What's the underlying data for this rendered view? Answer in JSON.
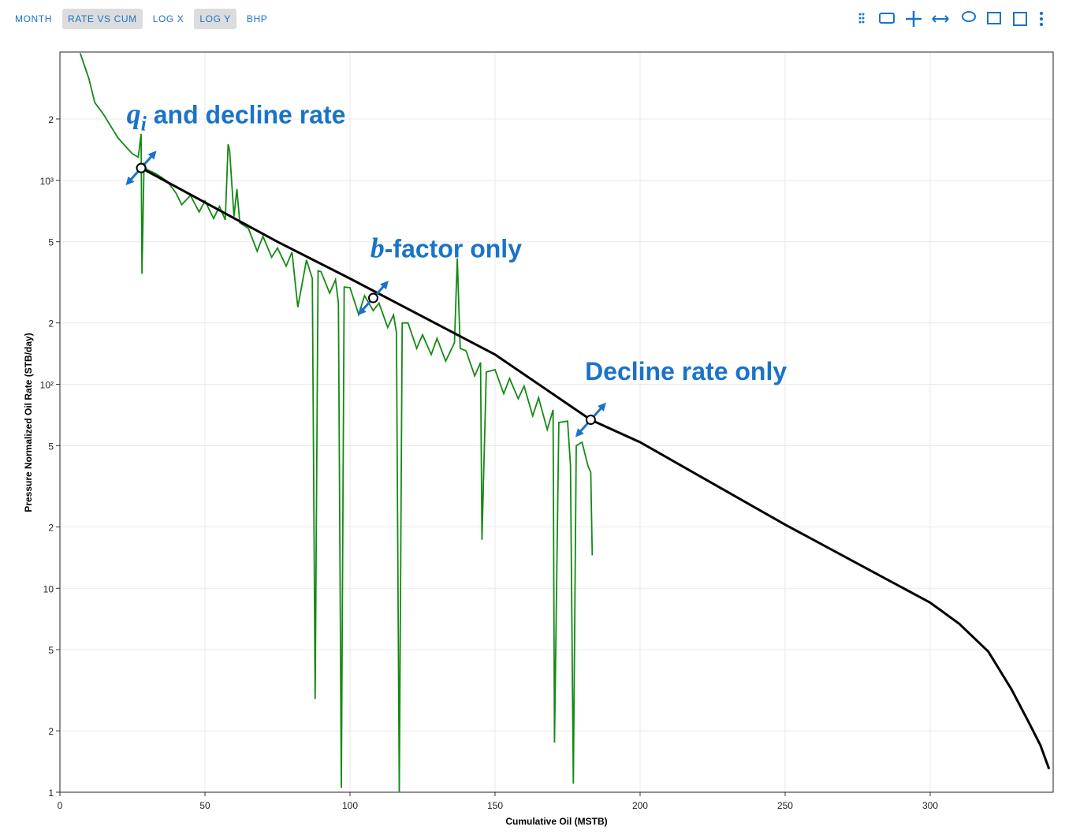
{
  "toolbar": [
    {
      "label": "MONTH",
      "active": false
    },
    {
      "label": "RATE VS CUM",
      "active": true
    },
    {
      "label": "LOG X",
      "active": false
    },
    {
      "label": "LOG Y",
      "active": true
    },
    {
      "label": "BHP",
      "active": false
    }
  ],
  "chart_data": {
    "type": "line",
    "xlabel": "Cumulative Oil (MSTB)",
    "ylabel": "Pressure Normalized Oil Rate (STB/day)",
    "xlim": [
      0,
      342.4
    ],
    "ylim": [
      1,
      4260
    ],
    "ylog": true,
    "grid": true,
    "xticks": [
      0,
      50,
      100,
      150,
      200,
      250,
      300
    ],
    "yticks": [
      1,
      2,
      5,
      {
        "value": 10,
        "label": "10"
      },
      {
        "value": 20,
        "label": "2"
      },
      {
        "value": 50,
        "label": "5"
      },
      {
        "value": 100,
        "label": "10²"
      },
      {
        "value": 200,
        "label": "2"
      },
      {
        "value": 500,
        "label": "5"
      },
      {
        "value": 1000,
        "label": "10³"
      },
      {
        "value": 2000,
        "label": "2"
      }
    ],
    "series": [
      {
        "color": "#138a13",
        "x": [
          7,
          10,
          12,
          15,
          18,
          20,
          23,
          25,
          27,
          28,
          28.3,
          29,
          30,
          33,
          35,
          37,
          38,
          40,
          42,
          45,
          48,
          50,
          53,
          55,
          57,
          58,
          58.5,
          60,
          61,
          62,
          65,
          68,
          70,
          73,
          75,
          78,
          80,
          82,
          85,
          87,
          88,
          89,
          90,
          93,
          95,
          96,
          97,
          98,
          100,
          103,
          105,
          108,
          110,
          113,
          115,
          116,
          117,
          118,
          120,
          123,
          125,
          128,
          130,
          133,
          136,
          137,
          138,
          140,
          143,
          145,
          145.5,
          147,
          150,
          153,
          155,
          158,
          160,
          163,
          165,
          168,
          170,
          170.5,
          172,
          175,
          176,
          177,
          178,
          180,
          182,
          183,
          183.5
        ],
        "values": [
          4200,
          3150,
          2410,
          2110,
          1800,
          1616,
          1450,
          1350,
          1300,
          1690,
          348,
          1200,
          1130,
          1080,
          1036,
          990,
          948,
          867,
          760,
          845,
          700,
          793,
          650,
          746,
          640,
          1505,
          1400,
          665,
          907,
          620,
          581,
          450,
          532,
          420,
          466,
          380,
          445,
          239,
          407,
          330,
          2.86,
          360,
          357,
          280,
          326,
          250,
          1.05,
          300,
          298,
          220,
          272,
          230,
          250,
          190,
          219,
          180,
          1.0,
          200,
          200,
          150,
          175,
          140,
          168,
          130,
          160,
          414,
          150,
          146,
          110,
          128,
          17.3,
          115,
          118,
          90,
          107,
          85,
          98,
          70,
          86,
          60,
          75,
          1.75,
          65,
          66,
          40,
          1.1,
          50,
          52,
          40,
          37,
          14.5
        ]
      },
      {
        "color": "#000000",
        "x": [
          28,
          50,
          75,
          100,
          125,
          150,
          183,
          200,
          250,
          300,
          310,
          320,
          328,
          334,
          338,
          341
        ],
        "values": [
          1150,
          780,
          500,
          330,
          215,
          140,
          67,
          52,
          20.5,
          8.5,
          6.7,
          4.9,
          3.2,
          2.2,
          1.7,
          1.3
        ]
      }
    ],
    "handles": {
      "x": [
        28,
        108,
        183
      ],
      "values": [
        1150,
        265,
        67
      ]
    },
    "annotations": [
      {
        "symbol": "q",
        "subscript": "i",
        "text": " and decline rate",
        "x": 23,
        "y": 1900
      },
      {
        "symbol": "b",
        "text": "-factor only",
        "x": 107,
        "y": 420
      },
      {
        "text": "Decline rate only",
        "x": 181,
        "y": 105
      }
    ]
  }
}
